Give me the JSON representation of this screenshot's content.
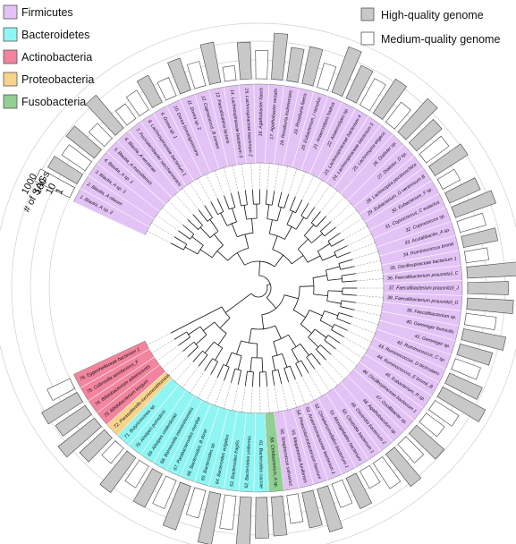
{
  "legend": {
    "phyla": [
      {
        "name": "Firmicutes",
        "color": "#e3c3f5"
      },
      {
        "name": "Bacteroidetes",
        "color": "#8ff5f2"
      },
      {
        "name": "Actinobacteria",
        "color": "#f2849e"
      },
      {
        "name": "Proteobacteria",
        "color": "#f7d48c"
      },
      {
        "name": "Fusobacteria",
        "color": "#92cf92"
      }
    ],
    "quality": [
      {
        "name": "High-quality genome",
        "color": "#c8c8c8"
      },
      {
        "name": "Medium-quality genome",
        "color": "#ffffff"
      }
    ]
  },
  "scale": {
    "title": "# of SAGs",
    "ticks": [
      "1000",
      "100",
      "10",
      "1"
    ]
  },
  "leaves": [
    {
      "label": "1. Blautia_A sp. 2",
      "phylum": "Firmicutes",
      "sags": 120,
      "quality": "medium"
    },
    {
      "label": "2. Blautia_A obeum",
      "phylum": "Firmicutes",
      "sags": 60,
      "quality": "high"
    },
    {
      "label": "3. Blautia_A sp. 3",
      "phylum": "Firmicutes",
      "sags": 30,
      "quality": "medium"
    },
    {
      "label": "4. Blautia_A sp. 1",
      "phylum": "Firmicutes",
      "sags": 80,
      "quality": "high"
    },
    {
      "label": "5. Blautia_A massiliensis",
      "phylum": "Firmicutes",
      "sags": 12,
      "quality": "medium"
    },
    {
      "label": "6. Blautia_A wexlerae",
      "phylum": "Firmicutes",
      "sags": 200,
      "quality": "high"
    },
    {
      "label": "7. Fusicatenibacter saccharivorans",
      "phylum": "Firmicutes",
      "sags": 8,
      "quality": "medium"
    },
    {
      "label": "8. Lachnospiraceae bacterium 1",
      "phylum": "Firmicutes",
      "sags": 15,
      "quality": "medium"
    },
    {
      "label": "9. Dorea sp. 1",
      "phylum": "Firmicutes",
      "sags": 40,
      "quality": "high"
    },
    {
      "label": "10. Dorea formicigenerans",
      "phylum": "Firmicutes",
      "sags": 10,
      "quality": "medium"
    },
    {
      "label": "11. Dorea sp. 2",
      "phylum": "Firmicutes",
      "sags": 60,
      "quality": "high"
    },
    {
      "label": "12. Coprococcus_B comes",
      "phylum": "Firmicutes",
      "sags": 20,
      "quality": "medium"
    },
    {
      "label": "13. Faecalicatena lactaris",
      "phylum": "Firmicutes",
      "sags": 150,
      "quality": "high"
    },
    {
      "label": "14. Lachnospiraceae bacterium 3",
      "phylum": "Firmicutes",
      "sags": 5,
      "quality": "medium"
    },
    {
      "label": "15. Lachnospiraceae bacterium 2",
      "phylum": "Firmicutes",
      "sags": 90,
      "quality": "high"
    },
    {
      "label": "16. Agathobacter faecis",
      "phylum": "Firmicutes",
      "sags": 30,
      "quality": "medium"
    },
    {
      "label": "17. Agathobacter rectalis",
      "phylum": "Firmicutes",
      "sags": 300,
      "quality": "high"
    },
    {
      "label": "18. Roseburia inulinivorans",
      "phylum": "Firmicutes",
      "sags": 60,
      "quality": "high"
    },
    {
      "label": "19. Roseburia faecis",
      "phylum": "Firmicutes",
      "sags": 100,
      "quality": "high"
    },
    {
      "label": "20. Eubacterium_I ramulus",
      "phylum": "Firmicutes",
      "sags": 20,
      "quality": "medium"
    },
    {
      "label": "21. Anaerostipes hadrus",
      "phylum": "Firmicutes",
      "sags": 400,
      "quality": "high"
    },
    {
      "label": "22. Anaerostipes sp.",
      "phylum": "Firmicutes",
      "sags": 80,
      "quality": "high"
    },
    {
      "label": "23. Lachnospiraceae bacterium 4",
      "phylum": "Firmicutes",
      "sags": 40,
      "quality": "medium"
    },
    {
      "label": "24. Lachnospiraceae bacterium 5",
      "phylum": "Firmicutes",
      "sags": 150,
      "quality": "high"
    },
    {
      "label": "25. Lachnospira eligens",
      "phylum": "Firmicutes",
      "sags": 20,
      "quality": "medium"
    },
    {
      "label": "26. Dialister sp.",
      "phylum": "Firmicutes",
      "sags": 250,
      "quality": "high"
    },
    {
      "label": "27. Dialister_D sp.",
      "phylum": "Firmicutes",
      "sags": 60,
      "quality": "high"
    },
    {
      "label": "28. Lachnospira pectinoschiza",
      "phylum": "Firmicutes",
      "sags": 30,
      "quality": "medium"
    },
    {
      "label": "29. Eubacterium_G ventriosum B",
      "phylum": "Firmicutes",
      "sags": 120,
      "quality": "high"
    },
    {
      "label": "30. Eubacterium_F sp.",
      "phylum": "Firmicutes",
      "sags": 10,
      "quality": "medium"
    },
    {
      "label": "31. Coprococcus_C eutactus",
      "phylum": "Firmicutes",
      "sags": 60,
      "quality": "high"
    },
    {
      "label": "32. Coprococcus sp.",
      "phylum": "Firmicutes",
      "sags": 200,
      "quality": "high"
    },
    {
      "label": "33. Acutalibacter_A sp.",
      "phylum": "Firmicutes",
      "sags": 25,
      "quality": "medium"
    },
    {
      "label": "34. Ruminococcus bromii",
      "phylum": "Firmicutes",
      "sags": 70,
      "quality": "high"
    },
    {
      "label": "35. Oscillospiraceae bacterium 1",
      "phylum": "Firmicutes",
      "sags": 15,
      "quality": "medium"
    },
    {
      "label": "36. Faecalibacterium prausnitzii_C",
      "phylum": "Firmicutes",
      "sags": 500,
      "quality": "high"
    },
    {
      "label": "37. Faecalibacterium prausnitzii_J",
      "phylum": "Firmicutes",
      "sags": 150,
      "quality": "high"
    },
    {
      "label": "38. Faecalibacterium prausnitzii_D",
      "phylum": "Firmicutes",
      "sags": 300,
      "quality": "high"
    },
    {
      "label": "39. Faecalibacterium sp.",
      "phylum": "Firmicutes",
      "sags": 40,
      "quality": "medium"
    },
    {
      "label": "40. Gemmiger formicilis",
      "phylum": "Firmicutes",
      "sags": 200,
      "quality": "high"
    },
    {
      "label": "41. Gemmiger sp.",
      "phylum": "Firmicutes",
      "sags": 60,
      "quality": "high"
    },
    {
      "label": "42. Ruminococcus_C sp.",
      "phylum": "Firmicutes",
      "sags": 25,
      "quality": "medium"
    },
    {
      "label": "43. Ruminococcus_D bicirculans",
      "phylum": "Firmicutes",
      "sags": 80,
      "quality": "high"
    },
    {
      "label": "44. Ruminococcus_E bromii_B",
      "phylum": "Firmicutes",
      "sags": 400,
      "quality": "high"
    },
    {
      "label": "45. Eubacterium_R sp.",
      "phylum": "Firmicutes",
      "sags": 30,
      "quality": "medium"
    },
    {
      "label": "46. Oscillospiraceae bacterium 1",
      "phylum": "Firmicutes",
      "sags": 15,
      "quality": "medium"
    },
    {
      "label": "47. Oscillibacter sp.",
      "phylum": "Firmicutes",
      "sags": 90,
      "quality": "high"
    },
    {
      "label": "48. Agathobaculum sp.",
      "phylum": "Firmicutes",
      "sags": 20,
      "quality": "medium"
    },
    {
      "label": "49. Clostridia bacterium 2",
      "phylum": "Firmicutes",
      "sags": 150,
      "quality": "high"
    },
    {
      "label": "50. Clostridia bacterium 1",
      "phylum": "Firmicutes",
      "sags": 40,
      "quality": "medium"
    },
    {
      "label": "51. Monoglobales bacterium",
      "phylum": "Firmicutes",
      "sags": 10,
      "quality": "medium"
    },
    {
      "label": "52. Christensenellales bacterium 1",
      "phylum": "Firmicutes",
      "sags": 60,
      "quality": "high"
    },
    {
      "label": "53. Anaerovoracaceae bacterium 1",
      "phylum": "Firmicutes",
      "sags": 20,
      "quality": "medium"
    },
    {
      "label": "54. Phascolarctobacterium faecium",
      "phylum": "Firmicutes",
      "sags": 250,
      "quality": "high"
    },
    {
      "label": "55. Megamonas funiformis",
      "phylum": "Firmicutes",
      "sags": 80,
      "quality": "high"
    },
    {
      "label": "56. Streptococcus salivarius",
      "phylum": "Firmicutes",
      "sags": 30,
      "quality": "medium"
    },
    {
      "label": "58. Cetobacterium_A sp.",
      "phylum": "Fusobacteria",
      "sags": 120,
      "quality": "high"
    },
    {
      "label": "61. Bacteroides caccae",
      "phylum": "Bacteroidetes",
      "sags": 150,
      "quality": "high"
    },
    {
      "label": "62. Bacteroides uniformis",
      "phylum": "Bacteroidetes",
      "sags": 400,
      "quality": "high"
    },
    {
      "label": "63. Bacteroides fragilis",
      "phylum": "Bacteroidetes",
      "sags": 60,
      "quality": "medium"
    },
    {
      "label": "64. Bacteroides vulgatus",
      "phylum": "Bacteroidetes",
      "sags": 600,
      "quality": "high"
    },
    {
      "label": "65. Bacteroides sp.",
      "phylum": "Bacteroidetes",
      "sags": 30,
      "quality": "medium"
    },
    {
      "label": "66. Bacteroides_B dorei",
      "phylum": "Bacteroidetes",
      "sags": 300,
      "quality": "high"
    },
    {
      "label": "67. Parabacteroides merdae",
      "phylum": "Bacteroidetes",
      "sags": 40,
      "quality": "medium"
    },
    {
      "label": "68. Barnesiella intestinihominis",
      "phylum": "Bacteroidetes",
      "sags": 100,
      "quality": "high"
    },
    {
      "label": "69. Alistipes onderdonkii",
      "phylum": "Bacteroidetes",
      "sags": 20,
      "quality": "medium"
    },
    {
      "label": "70. Alistipes putredinis",
      "phylum": "Bacteroidetes",
      "sags": 200,
      "quality": "high"
    },
    {
      "label": "71. Butyricimonas sp.",
      "phylum": "Bacteroidetes",
      "sags": 10,
      "quality": "medium"
    },
    {
      "label": "72. Parasutterella excrementihominis",
      "phylum": "Proteobacteria",
      "sags": 60,
      "quality": "high"
    },
    {
      "label": "73. Bifidobacterium longum",
      "phylum": "Actinobacteria",
      "sags": 300,
      "quality": "high"
    },
    {
      "label": "74. Bifidobacterium adolescentis",
      "phylum": "Actinobacteria",
      "sags": 80,
      "quality": "high"
    },
    {
      "label": "75. Collinsella aerofaciens_F",
      "phylum": "Actinobacteria",
      "sags": 150,
      "quality": "high"
    },
    {
      "label": "76. Eggerthellaceae bacterium 1",
      "phylum": "Actinobacteria",
      "sags": 20,
      "quality": "medium"
    }
  ]
}
